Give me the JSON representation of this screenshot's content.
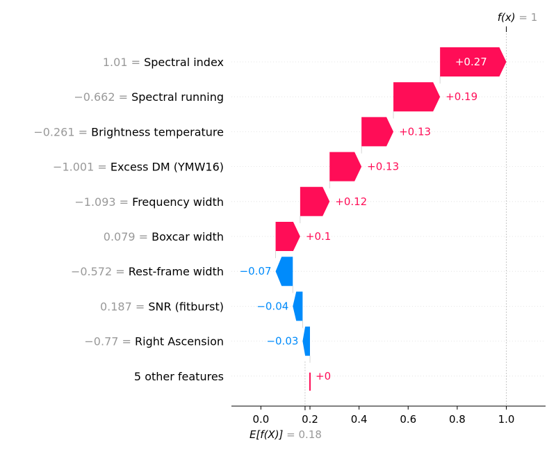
{
  "chart_data": {
    "type": "waterfall",
    "base_value": 0.18,
    "base_value_text": "0.18",
    "final_value": 1,
    "final_value_text": "1",
    "base_label": "E[f(X)]",
    "final_label": "f(x)",
    "xlim": [
      -0.12,
      1.16
    ],
    "xticks": [
      0.0,
      0.2,
      0.4,
      0.6,
      0.8,
      1.0
    ],
    "xtick_labels": [
      "0.0",
      "0.2",
      "0.4",
      "0.6",
      "0.8",
      "1.0"
    ],
    "features": [
      {
        "value_text": "1.01",
        "name": "Spectral index",
        "contribution": 0.27,
        "contribution_text": "+0.27"
      },
      {
        "value_text": "−0.662",
        "name": "Spectral running",
        "contribution": 0.19,
        "contribution_text": "+0.19"
      },
      {
        "value_text": "−0.261",
        "name": "Brightness temperature",
        "contribution": 0.13,
        "contribution_text": "+0.13"
      },
      {
        "value_text": "−1.001",
        "name": "Excess DM (YMW16)",
        "contribution": 0.13,
        "contribution_text": "+0.13"
      },
      {
        "value_text": "−1.093",
        "name": "Frequency width",
        "contribution": 0.12,
        "contribution_text": "+0.12"
      },
      {
        "value_text": "0.079",
        "name": "Boxcar width",
        "contribution": 0.1,
        "contribution_text": "+0.1"
      },
      {
        "value_text": "−0.572",
        "name": "Rest-frame width",
        "contribution": -0.07,
        "contribution_text": "−0.07"
      },
      {
        "value_text": "0.187",
        "name": "SNR (fitburst)",
        "contribution": -0.04,
        "contribution_text": "−0.04"
      },
      {
        "value_text": "−0.77",
        "name": "Right Ascension",
        "contribution": -0.03,
        "contribution_text": "−0.03"
      },
      {
        "value_text": "",
        "name": "5 other features",
        "contribution": 0.0,
        "contribution_text": "+0"
      }
    ],
    "colors": {
      "positive": "#ff0d57",
      "negative": "#008bfb",
      "muted": "#999999"
    }
  }
}
